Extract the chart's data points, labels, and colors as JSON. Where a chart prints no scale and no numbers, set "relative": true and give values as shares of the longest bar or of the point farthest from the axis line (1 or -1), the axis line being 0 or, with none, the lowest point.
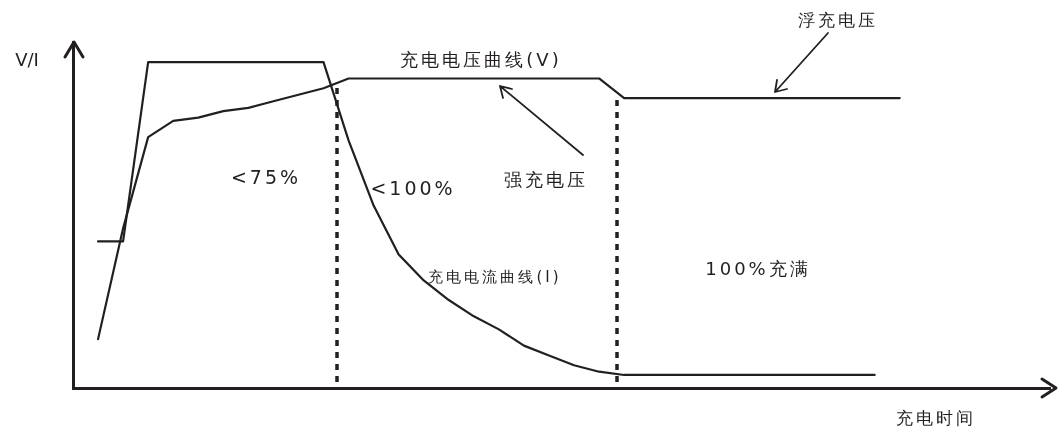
{
  "chart_data": {
    "type": "line",
    "relative": true,
    "xlabel": "充电时间",
    "ylabel": "V/I",
    "legend": false,
    "marker": "none",
    "line_style": "solid",
    "categories": [
      null,
      null,
      null,
      null,
      null,
      null,
      null,
      null,
      null,
      null,
      null,
      null,
      null,
      null,
      null,
      null,
      null,
      null,
      null,
      null,
      null,
      null,
      null,
      null,
      null,
      null,
      null,
      null,
      null,
      null,
      null,
      null,
      null,
      null,
      null,
      null,
      null,
      null,
      null,
      null
    ],
    "series": [
      {
        "name": "充电电压曲线(V)",
        "color": "#231f20",
        "values": [
          null,
          0.15,
          0.49,
          0.77,
          0.82,
          0.83,
          0.85,
          0.86,
          0.88,
          0.9,
          0.92,
          0.95,
          0.95,
          0.95,
          0.95,
          0.95,
          0.95,
          0.95,
          0.95,
          0.95,
          0.95,
          0.95,
          0.89,
          0.89,
          0.89,
          0.89,
          0.89,
          0.89,
          0.89,
          0.89,
          0.89,
          0.89,
          0.89,
          0.89,
          null,
          null,
          null,
          null,
          null,
          null
        ]
      },
      {
        "name": "充电电流曲线(I)",
        "color": "#231f20",
        "values": [
          null,
          0.45,
          0.45,
          1,
          1,
          1,
          1,
          1,
          1,
          1,
          1,
          0.76,
          0.56,
          0.41,
          0.33,
          0.27,
          0.22,
          0.18,
          0.13,
          0.1,
          0.07,
          0.05,
          0.04,
          0.04,
          0.04,
          0.04,
          0.04,
          0.04,
          0.04,
          0.04,
          0.04,
          0.04,
          0.04,
          null,
          null,
          null,
          null,
          null,
          null,
          null
        ]
      }
    ],
    "annotations": [
      "<75%",
      "<100%",
      "强充电压",
      "浮充电压",
      "100%充满"
    ]
  }
}
